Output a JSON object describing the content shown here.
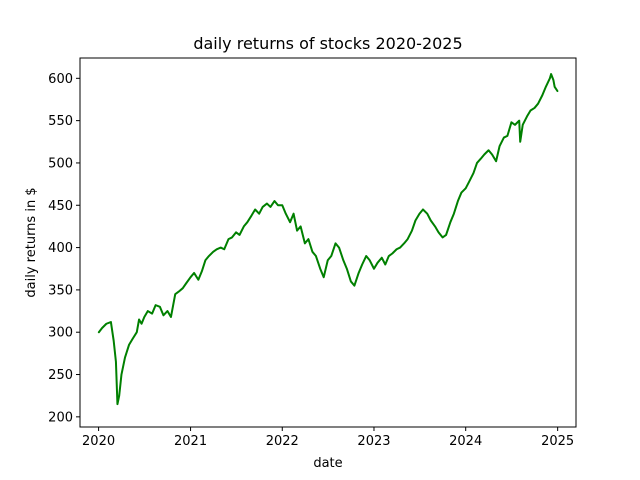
{
  "chart_data": {
    "type": "line",
    "title": "daily returns of stocks 2020-2025",
    "xlabel": "date",
    "ylabel": "daily returns in $",
    "x_ticks": [
      "2020",
      "2021",
      "2022",
      "2023",
      "2024",
      "2025"
    ],
    "y_ticks": [
      "200",
      "250",
      "300",
      "350",
      "400",
      "450",
      "500",
      "550",
      "600"
    ],
    "xlim": [
      "2019-10-19",
      "2025-03-15"
    ],
    "ylim": [
      188,
      624
    ],
    "grid": false,
    "legend": "none",
    "series": [
      {
        "color": "#008000",
        "x": [
          "2020-01-02",
          "2020-01-15",
          "2020-02-01",
          "2020-02-19",
          "2020-03-01",
          "2020-03-10",
          "2020-03-16",
          "2020-03-23",
          "2020-04-01",
          "2020-04-15",
          "2020-05-01",
          "2020-05-15",
          "2020-06-01",
          "2020-06-10",
          "2020-06-20",
          "2020-07-01",
          "2020-07-15",
          "2020-08-01",
          "2020-08-15",
          "2020-09-01",
          "2020-09-15",
          "2020-10-01",
          "2020-10-15",
          "2020-11-01",
          "2020-11-15",
          "2020-12-01",
          "2020-12-15",
          "2021-01-01",
          "2021-01-15",
          "2021-02-01",
          "2021-02-15",
          "2021-03-01",
          "2021-03-15",
          "2021-04-01",
          "2021-04-15",
          "2021-05-01",
          "2021-05-15",
          "2021-06-01",
          "2021-06-15",
          "2021-07-01",
          "2021-07-15",
          "2021-08-01",
          "2021-08-15",
          "2021-09-01",
          "2021-09-15",
          "2021-10-01",
          "2021-10-15",
          "2021-11-01",
          "2021-11-15",
          "2021-12-01",
          "2021-12-15",
          "2022-01-01",
          "2022-01-15",
          "2022-02-01",
          "2022-02-15",
          "2022-03-01",
          "2022-03-15",
          "2022-04-01",
          "2022-04-15",
          "2022-05-01",
          "2022-05-15",
          "2022-06-01",
          "2022-06-15",
          "2022-07-01",
          "2022-07-15",
          "2022-08-01",
          "2022-08-15",
          "2022-09-01",
          "2022-09-15",
          "2022-10-01",
          "2022-10-15",
          "2022-11-01",
          "2022-11-15",
          "2022-12-01",
          "2022-12-15",
          "2023-01-01",
          "2023-01-15",
          "2023-02-01",
          "2023-02-15",
          "2023-03-01",
          "2023-03-15",
          "2023-04-01",
          "2023-04-15",
          "2023-05-01",
          "2023-05-15",
          "2023-06-01",
          "2023-06-15",
          "2023-07-01",
          "2023-07-15",
          "2023-08-01",
          "2023-08-15",
          "2023-09-01",
          "2023-09-15",
          "2023-10-01",
          "2023-10-15",
          "2023-11-01",
          "2023-11-15",
          "2023-12-01",
          "2023-12-15",
          "2024-01-01",
          "2024-01-15",
          "2024-02-01",
          "2024-02-15",
          "2024-03-01",
          "2024-03-15",
          "2024-04-01",
          "2024-04-15",
          "2024-05-01",
          "2024-05-15",
          "2024-06-01",
          "2024-06-15",
          "2024-07-01",
          "2024-07-15",
          "2024-08-01",
          "2024-08-05",
          "2024-08-15",
          "2024-09-01",
          "2024-09-15",
          "2024-10-01",
          "2024-10-15",
          "2024-11-01",
          "2024-11-15",
          "2024-12-01",
          "2024-12-06",
          "2024-12-15",
          "2024-12-20",
          "2024-12-31"
        ],
        "y": [
          300,
          305,
          310,
          312,
          290,
          265,
          215,
          225,
          250,
          270,
          285,
          292,
          300,
          315,
          310,
          318,
          325,
          322,
          332,
          330,
          320,
          325,
          318,
          345,
          348,
          352,
          358,
          365,
          370,
          362,
          372,
          385,
          390,
          395,
          398,
          400,
          398,
          410,
          412,
          418,
          415,
          425,
          430,
          438,
          445,
          440,
          448,
          452,
          448,
          455,
          450,
          450,
          440,
          430,
          440,
          420,
          425,
          405,
          410,
          395,
          390,
          375,
          365,
          385,
          390,
          405,
          400,
          385,
          375,
          360,
          355,
          370,
          380,
          390,
          385,
          375,
          382,
          388,
          380,
          390,
          393,
          398,
          400,
          405,
          410,
          420,
          432,
          440,
          445,
          440,
          432,
          425,
          418,
          412,
          415,
          430,
          440,
          455,
          465,
          470,
          478,
          488,
          500,
          505,
          510,
          515,
          510,
          502,
          520,
          530,
          532,
          548,
          545,
          550,
          525,
          545,
          555,
          562,
          565,
          570,
          580,
          590,
          600,
          605,
          598,
          590,
          585
        ]
      }
    ]
  }
}
